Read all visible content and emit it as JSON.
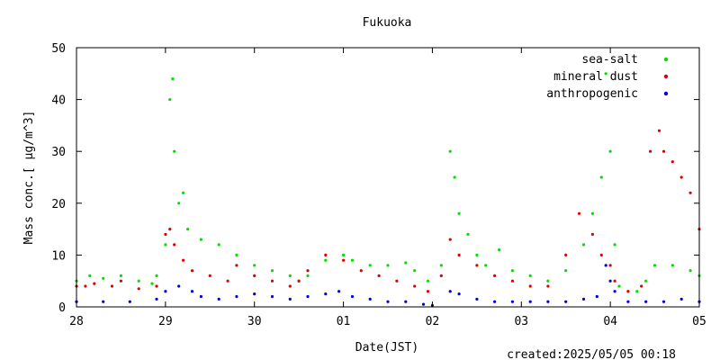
{
  "chart_data": {
    "type": "scatter",
    "title": "Fukuoka",
    "xlabel": "Date(JST)",
    "ylabel": "Mass conc.[ μg/m^3]",
    "footer": "created:2025/05/05 00:18",
    "xlim": [
      0,
      7
    ],
    "ylim": [
      0,
      50
    ],
    "x_ticks": [
      {
        "x": 0,
        "label": "28"
      },
      {
        "x": 1,
        "label": "29"
      },
      {
        "x": 2,
        "label": "30"
      },
      {
        "x": 3,
        "label": "01"
      },
      {
        "x": 4,
        "label": "02"
      },
      {
        "x": 5,
        "label": "03"
      },
      {
        "x": 6,
        "label": "04"
      },
      {
        "x": 7,
        "label": "05"
      }
    ],
    "y_ticks": [
      0,
      10,
      20,
      30,
      40,
      50
    ],
    "grid": false,
    "legend_position": "top-right",
    "series": [
      {
        "name": "sea-salt",
        "color": "#00e000",
        "points": [
          [
            0.0,
            5
          ],
          [
            0.15,
            6
          ],
          [
            0.3,
            5.5
          ],
          [
            0.5,
            6
          ],
          [
            0.7,
            5
          ],
          [
            0.85,
            4.5
          ],
          [
            0.9,
            6
          ],
          [
            1.0,
            12
          ],
          [
            1.05,
            40
          ],
          [
            1.08,
            44
          ],
          [
            1.1,
            30
          ],
          [
            1.15,
            20
          ],
          [
            1.2,
            22
          ],
          [
            1.25,
            15
          ],
          [
            1.4,
            13
          ],
          [
            1.6,
            12
          ],
          [
            1.8,
            10
          ],
          [
            2.0,
            8
          ],
          [
            2.2,
            7
          ],
          [
            2.4,
            6
          ],
          [
            2.5,
            5
          ],
          [
            2.6,
            6
          ],
          [
            2.8,
            9
          ],
          [
            3.0,
            10
          ],
          [
            3.1,
            9
          ],
          [
            3.3,
            8
          ],
          [
            3.5,
            8
          ],
          [
            3.7,
            8.5
          ],
          [
            3.8,
            7
          ],
          [
            3.95,
            5
          ],
          [
            4.1,
            8
          ],
          [
            4.2,
            30
          ],
          [
            4.25,
            25
          ],
          [
            4.3,
            18
          ],
          [
            4.4,
            14
          ],
          [
            4.5,
            10
          ],
          [
            4.6,
            8
          ],
          [
            4.75,
            11
          ],
          [
            4.9,
            7
          ],
          [
            5.1,
            6
          ],
          [
            5.3,
            5
          ],
          [
            5.5,
            7
          ],
          [
            5.7,
            12
          ],
          [
            5.8,
            18
          ],
          [
            5.9,
            25
          ],
          [
            5.95,
            45
          ],
          [
            6.0,
            30
          ],
          [
            6.05,
            12
          ],
          [
            6.1,
            4
          ],
          [
            6.3,
            3
          ],
          [
            6.4,
            5
          ],
          [
            6.5,
            8
          ],
          [
            6.7,
            8
          ],
          [
            6.9,
            7
          ],
          [
            7.0,
            6
          ]
        ]
      },
      {
        "name": "mineral dust",
        "color": "#e00000",
        "points": [
          [
            0.0,
            4
          ],
          [
            0.1,
            4
          ],
          [
            0.2,
            4.5
          ],
          [
            0.4,
            4
          ],
          [
            0.5,
            5
          ],
          [
            0.7,
            3.5
          ],
          [
            0.9,
            4
          ],
          [
            1.0,
            14
          ],
          [
            1.05,
            15
          ],
          [
            1.1,
            12
          ],
          [
            1.2,
            9
          ],
          [
            1.3,
            7
          ],
          [
            1.5,
            6
          ],
          [
            1.7,
            5
          ],
          [
            1.8,
            8
          ],
          [
            2.0,
            6
          ],
          [
            2.2,
            5
          ],
          [
            2.4,
            4
          ],
          [
            2.5,
            5
          ],
          [
            2.6,
            7
          ],
          [
            2.8,
            10
          ],
          [
            3.0,
            9
          ],
          [
            3.2,
            7
          ],
          [
            3.4,
            6
          ],
          [
            3.6,
            5
          ],
          [
            3.8,
            4
          ],
          [
            3.95,
            3
          ],
          [
            4.1,
            6
          ],
          [
            4.2,
            13
          ],
          [
            4.3,
            10
          ],
          [
            4.5,
            8
          ],
          [
            4.7,
            6
          ],
          [
            4.9,
            5
          ],
          [
            5.1,
            4
          ],
          [
            5.3,
            4
          ],
          [
            5.5,
            10
          ],
          [
            5.65,
            18
          ],
          [
            5.8,
            14
          ],
          [
            5.9,
            10
          ],
          [
            6.0,
            8
          ],
          [
            6.05,
            5
          ],
          [
            6.2,
            3
          ],
          [
            6.35,
            4
          ],
          [
            6.45,
            30
          ],
          [
            6.55,
            34
          ],
          [
            6.6,
            30
          ],
          [
            6.7,
            28
          ],
          [
            6.8,
            25
          ],
          [
            6.9,
            22
          ],
          [
            7.0,
            15
          ]
        ]
      },
      {
        "name": "anthropogenic",
        "color": "#0000e0",
        "points": [
          [
            0.0,
            1
          ],
          [
            0.3,
            1
          ],
          [
            0.6,
            1
          ],
          [
            0.9,
            1.5
          ],
          [
            1.0,
            3
          ],
          [
            1.15,
            4
          ],
          [
            1.3,
            3
          ],
          [
            1.4,
            2
          ],
          [
            1.6,
            1.5
          ],
          [
            1.8,
            2
          ],
          [
            2.0,
            2.5
          ],
          [
            2.2,
            2
          ],
          [
            2.4,
            1.5
          ],
          [
            2.6,
            2
          ],
          [
            2.8,
            2.5
          ],
          [
            2.95,
            3
          ],
          [
            3.1,
            2
          ],
          [
            3.3,
            1.5
          ],
          [
            3.5,
            1
          ],
          [
            3.7,
            1
          ],
          [
            3.9,
            0.5
          ],
          [
            4.0,
            0.3
          ],
          [
            4.2,
            3
          ],
          [
            4.3,
            2.5
          ],
          [
            4.5,
            1.5
          ],
          [
            4.7,
            1
          ],
          [
            4.9,
            1
          ],
          [
            5.1,
            1
          ],
          [
            5.3,
            1
          ],
          [
            5.5,
            1
          ],
          [
            5.7,
            1.5
          ],
          [
            5.85,
            2
          ],
          [
            5.95,
            8
          ],
          [
            6.0,
            5
          ],
          [
            6.05,
            3
          ],
          [
            6.2,
            1
          ],
          [
            6.4,
            1
          ],
          [
            6.6,
            1
          ],
          [
            6.8,
            1.5
          ],
          [
            7.0,
            1
          ]
        ]
      }
    ]
  }
}
